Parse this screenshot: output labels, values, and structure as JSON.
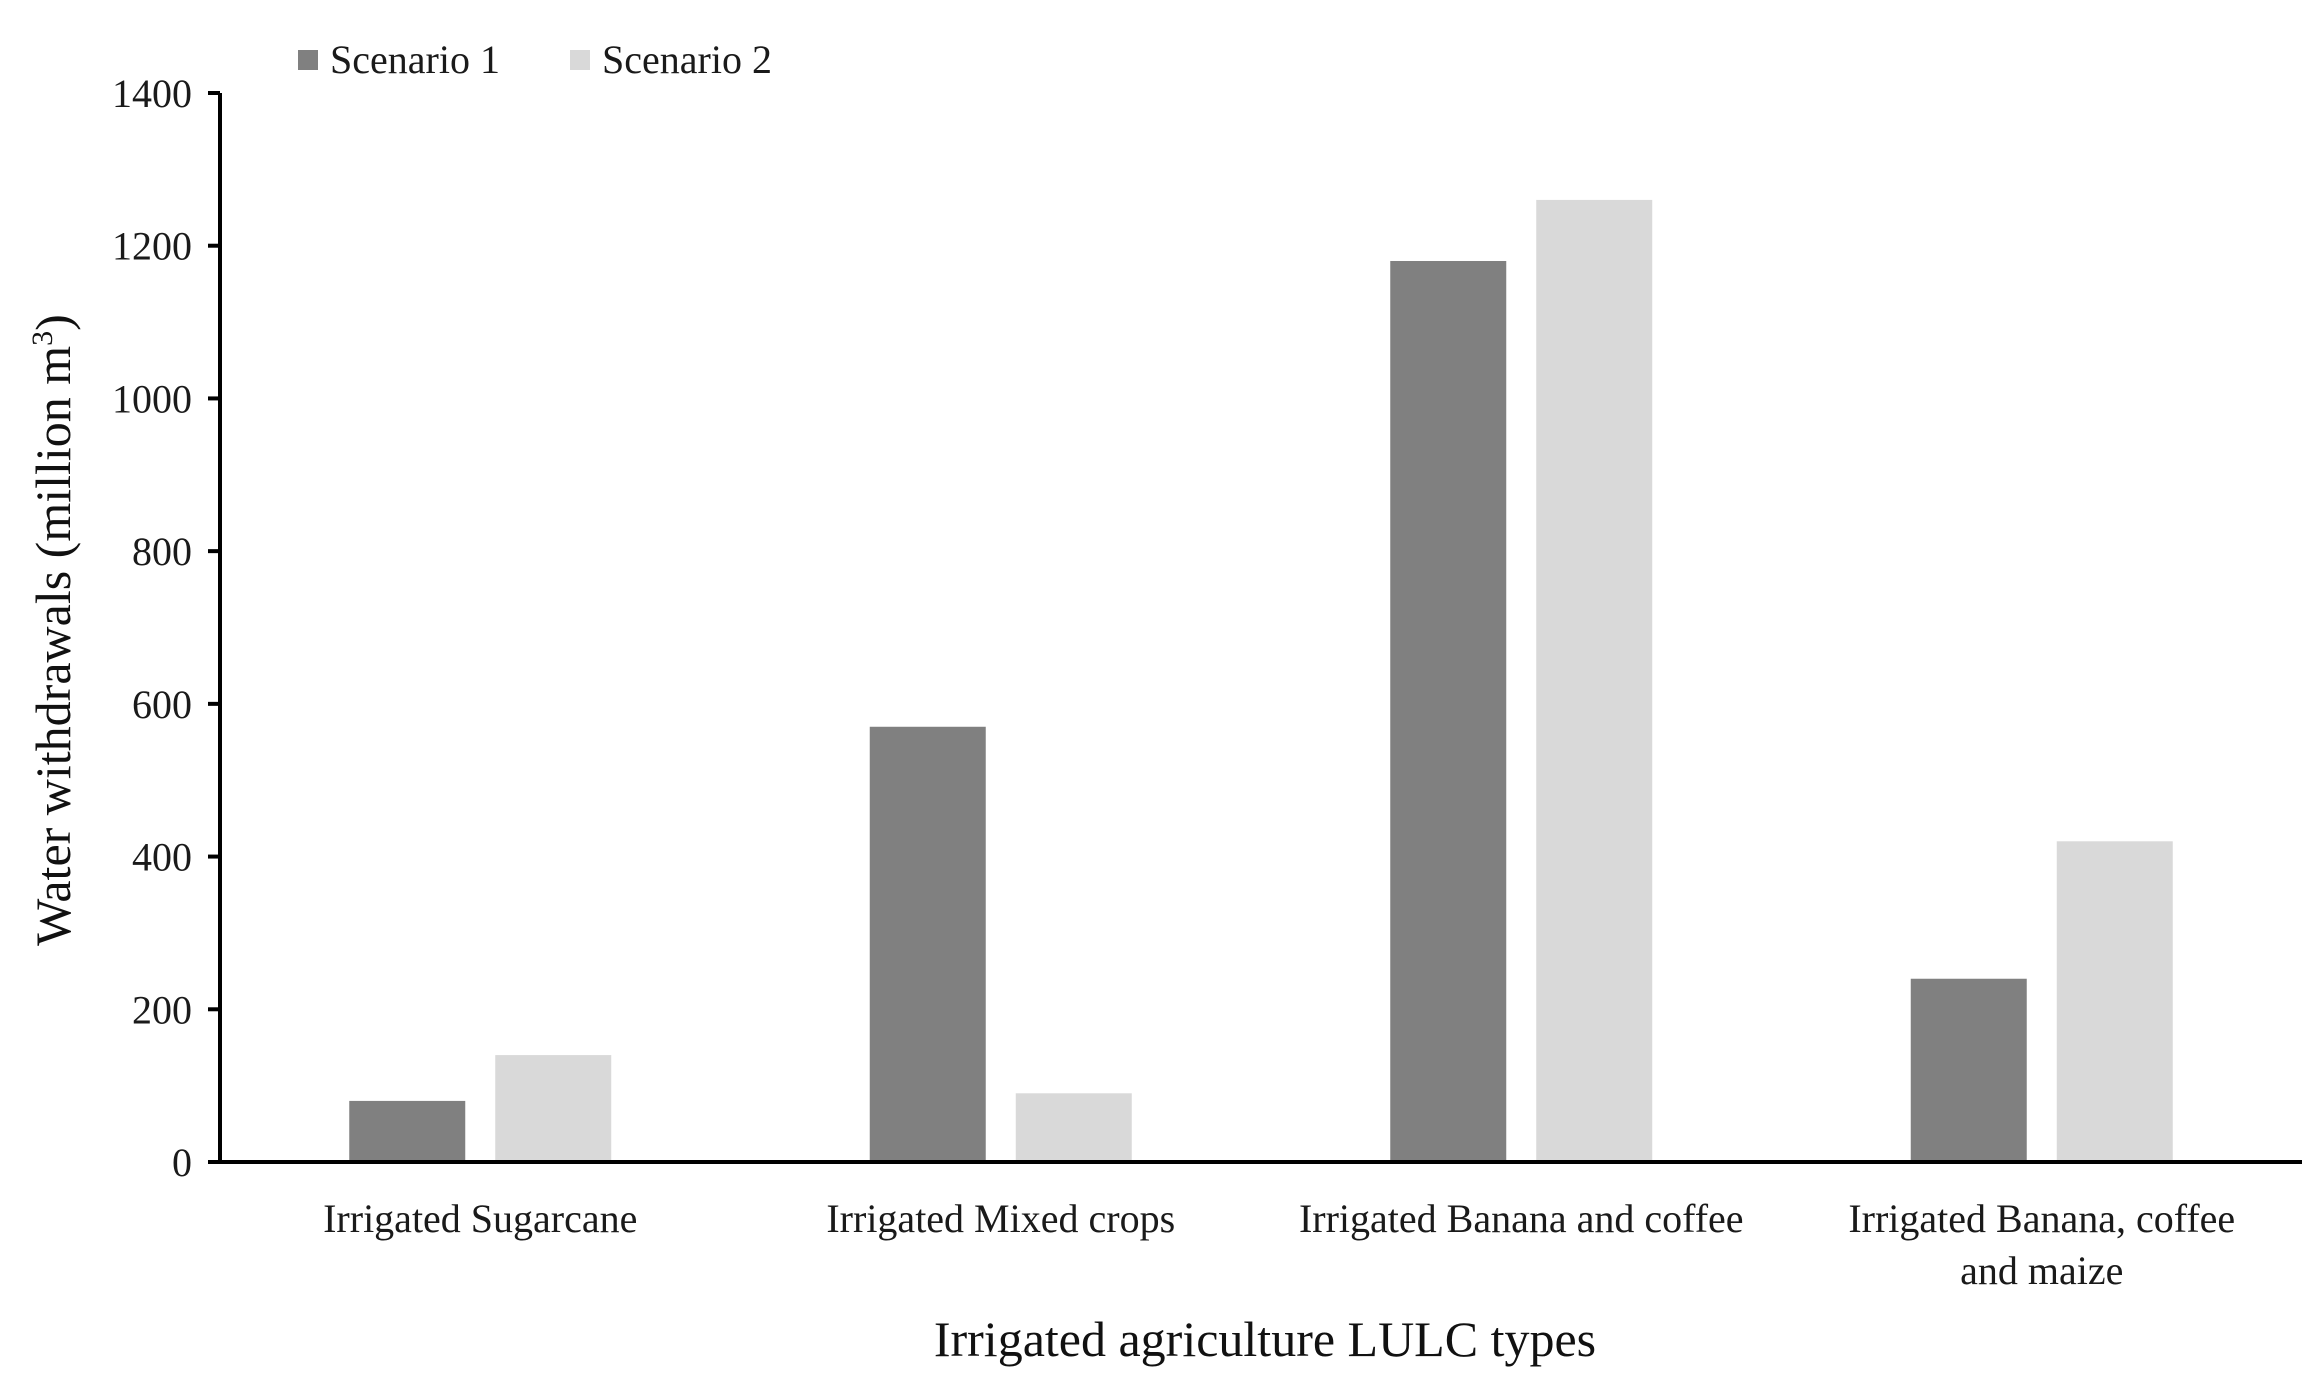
{
  "chart_data": {
    "type": "bar",
    "title": "",
    "xlabel": "Irrigated agriculture LULC types",
    "ylabel_main": "Water withdrawals (million m",
    "ylabel_sup": "3",
    "ylabel_close": ")",
    "ylim": [
      0,
      1400
    ],
    "yticks": [
      0,
      200,
      400,
      600,
      800,
      1000,
      1200,
      1400
    ],
    "grid": false,
    "legend_position": "top-left",
    "categories": [
      [
        "Irrigated Sugarcane"
      ],
      [
        "Irrigated Mixed crops"
      ],
      [
        "Irrigated Banana and coffee"
      ],
      [
        "Irrigated Banana, coffee",
        "and maize"
      ]
    ],
    "series": [
      {
        "name": "Scenario 1",
        "color": "#808080",
        "values": [
          80,
          570,
          1180,
          240
        ]
      },
      {
        "name": "Scenario 2",
        "color": "#d9d9d9",
        "values": [
          140,
          90,
          1260,
          420
        ]
      }
    ]
  }
}
